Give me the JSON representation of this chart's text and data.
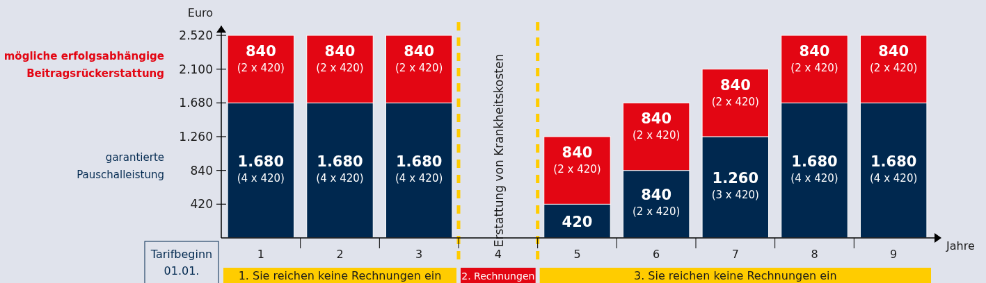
{
  "chart_data": {
    "type": "bar",
    "stacked": true,
    "categories": [
      "1",
      "2",
      "3",
      "4",
      "5",
      "6",
      "7",
      "8",
      "9"
    ],
    "series": [
      {
        "name": "garantierte Pauschalleistung",
        "color": "#00284f",
        "values": [
          1680,
          1680,
          1680,
          null,
          420,
          840,
          1260,
          1680,
          1680
        ],
        "value_labels": [
          "1.680 (4 x 420)",
          "1.680 (4 x 420)",
          "1.680 (4 x 420)",
          null,
          "420",
          "840 (2 x 420)",
          "1.260 (3 x 420)",
          "1.680 (4 x 420)",
          "1.680 (4 x 420)"
        ]
      },
      {
        "name": "mögliche erfolgsabhängige Beitragsrückerstattung",
        "color": "#e30613",
        "values": [
          840,
          840,
          840,
          null,
          840,
          840,
          840,
          840,
          840
        ],
        "value_labels": [
          "840 (2 x 420)",
          "840 (2 x 420)",
          "840 (2 x 420)",
          null,
          "840 (2 x 420)",
          "840 (2 x 420)",
          "840 (2 x 420)",
          "840 (2 x 420)",
          "840 (2 x 420)"
        ]
      }
    ],
    "ylim": [
      0,
      2520
    ],
    "yticks": [
      {
        "value": 420,
        "label": "420"
      },
      {
        "value": 840,
        "label": "840"
      },
      {
        "value": 1260,
        "label": "1.260"
      },
      {
        "value": 1680,
        "label": "1.680"
      },
      {
        "value": 2100,
        "label": "2.100"
      },
      {
        "value": 2520,
        "label": "2.520"
      }
    ],
    "ylabel": "Euro",
    "xlabel": "Jahre",
    "legend": "left",
    "grid": false,
    "annotations": [
      "Erstattung von Krankheitskosten",
      "Tarifbeginn 01.01.",
      "1. Sie reichen keine Rechnungen ein",
      "2. Rechnungen",
      "3. Sie reichen keine Rechnungen ein"
    ]
  }
}
